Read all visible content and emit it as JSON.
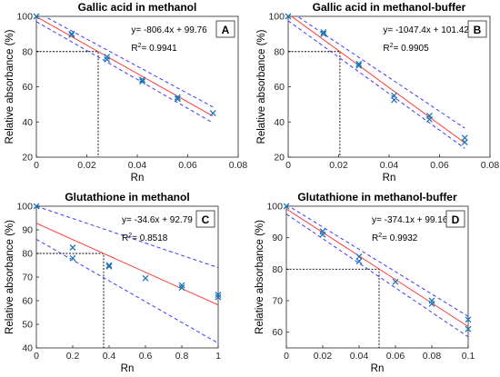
{
  "chart_data": [
    {
      "type": "scatter",
      "panel_label": "A",
      "title": "Gallic acid in methanol",
      "xlabel": "Rn",
      "ylabel": "Relative absorbance (%)",
      "xlim": [
        0,
        0.08
      ],
      "ylim": [
        20,
        100
      ],
      "xticks": [
        "0",
        "0.02",
        "0.04",
        "0.06",
        "0.08"
      ],
      "yticks": [
        "20",
        "40",
        "60",
        "80",
        "100"
      ],
      "equation": "y= -806.4x + 99.76",
      "r2_label": "R",
      "r2_exp": "2",
      "r2_value": "= 0.9941",
      "fit": {
        "slope": -806.4,
        "intercept": 99.76
      },
      "ci_upper": [
        [
          0,
          102.5
        ],
        [
          0.07,
          48.5
        ]
      ],
      "ci_lower": [
        [
          0,
          97
        ],
        [
          0.07,
          39.5
        ]
      ],
      "reference": {
        "y": 80,
        "x": 0.0245
      },
      "points": [
        [
          0,
          100
        ],
        [
          0.014,
          90
        ],
        [
          0.014,
          89.5
        ],
        [
          0.028,
          77
        ],
        [
          0.028,
          75.5
        ],
        [
          0.042,
          64
        ],
        [
          0.042,
          63
        ],
        [
          0.056,
          54
        ],
        [
          0.056,
          53
        ],
        [
          0.07,
          45
        ]
      ]
    },
    {
      "type": "scatter",
      "panel_label": "B",
      "title": "Gallic acid in methanol-buffer",
      "xlabel": "Rn",
      "ylabel": "Relative absorbance (%)",
      "xlim": [
        0,
        0.08
      ],
      "ylim": [
        20,
        100
      ],
      "xticks": [
        "0",
        "0.02",
        "0.04",
        "0.06",
        "0.08"
      ],
      "yticks": [
        "20",
        "40",
        "60",
        "80",
        "100"
      ],
      "equation": "y= -1047.4x + 101.42",
      "r2_label": "R",
      "r2_exp": "2",
      "r2_value": "= 0.9905",
      "fit": {
        "slope": -1047.4,
        "intercept": 101.42
      },
      "ci_upper": [
        [
          0,
          103.5
        ],
        [
          0.07,
          36.5
        ]
      ],
      "ci_lower": [
        [
          0,
          97.5
        ],
        [
          0.07,
          25
        ]
      ],
      "reference": {
        "y": 80,
        "x": 0.0205
      },
      "points": [
        [
          0,
          100
        ],
        [
          0.014,
          91
        ],
        [
          0.014,
          90
        ],
        [
          0.028,
          73
        ],
        [
          0.028,
          72
        ],
        [
          0.042,
          55
        ],
        [
          0.042,
          52.5
        ],
        [
          0.056,
          43.5
        ],
        [
          0.056,
          41.5
        ],
        [
          0.07,
          31
        ],
        [
          0.07,
          28.5
        ]
      ]
    },
    {
      "type": "scatter",
      "panel_label": "C",
      "title": "Glutathione in methanol",
      "xlabel": "Rn",
      "ylabel": "Relative absorbance (%)",
      "xlim": [
        0,
        1
      ],
      "ylim": [
        40,
        100
      ],
      "xticks": [
        "0",
        "0.2",
        "0.4",
        "0.6",
        "0.8",
        "1"
      ],
      "yticks": [
        "40",
        "50",
        "60",
        "70",
        "80",
        "90",
        "100"
      ],
      "equation": "y= -34.6x + 92.79",
      "r2_label": "R",
      "r2_exp": "2",
      "r2_value": "= 0.8518",
      "fit": {
        "slope": -34.6,
        "intercept": 92.79
      },
      "ci_upper": [
        [
          0,
          100
        ],
        [
          1,
          74
        ]
      ],
      "ci_lower": [
        [
          0,
          86
        ],
        [
          1,
          42
        ]
      ],
      "reference": {
        "y": 80,
        "x": 0.37
      },
      "points": [
        [
          0,
          100
        ],
        [
          0.2,
          82.5
        ],
        [
          0.2,
          78
        ],
        [
          0.4,
          75
        ],
        [
          0.4,
          74.5
        ],
        [
          0.6,
          69.5
        ],
        [
          0.8,
          66.5
        ],
        [
          0.8,
          65.5
        ],
        [
          1,
          62.5
        ],
        [
          1,
          61.5
        ]
      ]
    },
    {
      "type": "scatter",
      "panel_label": "D",
      "title": "Glutathione in methanol-buffer",
      "xlabel": "Rn",
      "ylabel": "Relative absorbance (%)",
      "xlim": [
        0,
        0.1
      ],
      "ylim": [
        55,
        100
      ],
      "xticks": [
        "0",
        "0.02",
        "0.04",
        "0.06",
        "0.08",
        "0.1"
      ],
      "yticks": [
        "60",
        "70",
        "80",
        "90",
        "100"
      ],
      "equation": "y= -374.1x + 99.16",
      "r2_label": "R",
      "r2_exp": "2",
      "r2_value": "= 0.9932",
      "fit": {
        "slope": -374.1,
        "intercept": 99.16
      },
      "ci_upper": [
        [
          0,
          100.5
        ],
        [
          0.1,
          65
        ]
      ],
      "ci_lower": [
        [
          0,
          97.5
        ],
        [
          0.1,
          58.5
        ]
      ],
      "reference": {
        "y": 80,
        "x": 0.051
      },
      "points": [
        [
          0,
          100
        ],
        [
          0.02,
          92
        ],
        [
          0.02,
          91
        ],
        [
          0.04,
          84
        ],
        [
          0.04,
          82.5
        ],
        [
          0.06,
          76
        ],
        [
          0.08,
          70
        ],
        [
          0.08,
          69
        ],
        [
          0.1,
          64
        ],
        [
          0.1,
          61
        ]
      ]
    }
  ],
  "colors": {
    "fit_line": "#ff3b3b",
    "ci_line": "#3a3aff",
    "marker": "#1f77b4",
    "reference": "#000000",
    "axis": "#262626"
  }
}
